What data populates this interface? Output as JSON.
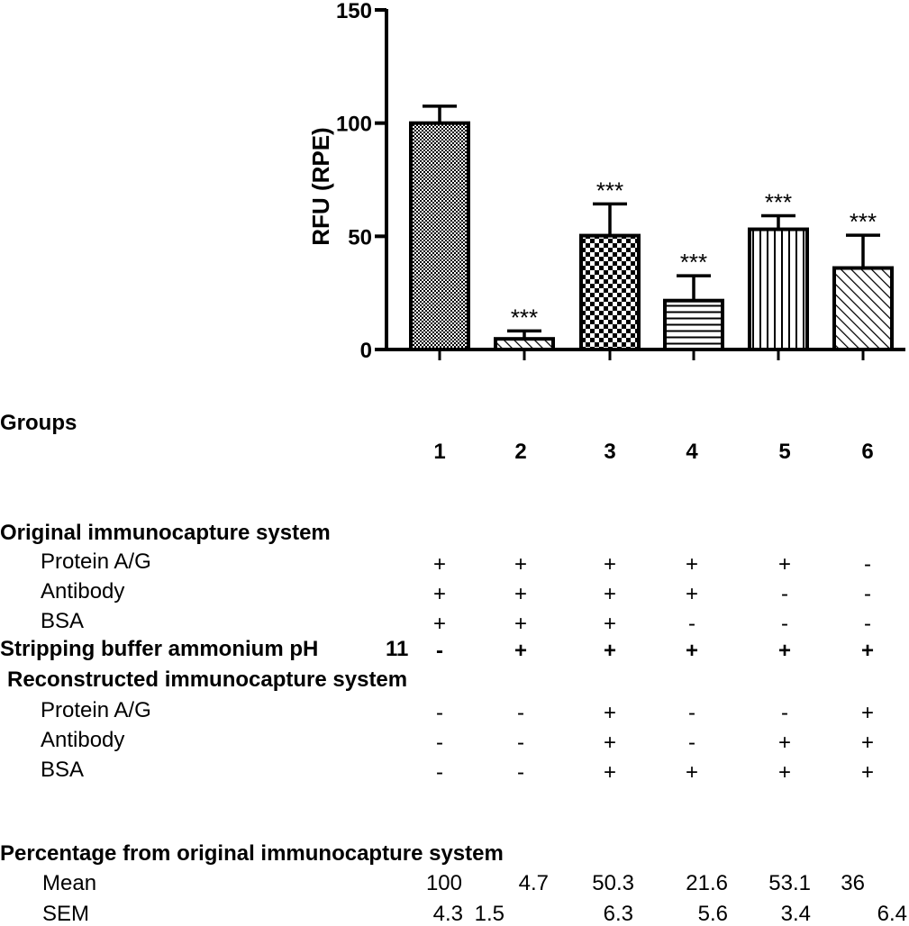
{
  "chart_data": {
    "type": "bar",
    "ylabel": "RFU (RPE)",
    "ylim": [
      0,
      150
    ],
    "yticks": [
      0,
      50,
      100,
      150
    ],
    "categories": [
      "1",
      "2",
      "3",
      "4",
      "5",
      "6"
    ],
    "values": [
      100,
      4.7,
      50.3,
      21.6,
      53.1,
      36
    ],
    "error_plus": [
      7.5,
      3.5,
      14,
      11,
      6,
      14.5
    ],
    "significance": [
      "",
      "***",
      "***",
      "***",
      "***",
      "***"
    ],
    "patterns": [
      "fine-dots",
      "diagonal",
      "checker",
      "horizontal",
      "vertical",
      "diagonal"
    ]
  },
  "table": {
    "groups_label": "Groups",
    "group_numbers": [
      "1",
      "2",
      "3",
      "4",
      "5",
      "6"
    ],
    "original_title": "Original immunocapture system",
    "original_rows": [
      {
        "label": "Protein A/G",
        "values": [
          "+",
          "+",
          "+",
          "+",
          "+",
          "-"
        ]
      },
      {
        "label": "Antibody",
        "values": [
          "+",
          "+",
          "+",
          "+",
          "-",
          "-"
        ]
      },
      {
        "label": "BSA",
        "values": [
          "+",
          "+",
          "+",
          "-",
          "-",
          "-"
        ]
      }
    ],
    "stripping": {
      "label": "Stripping buffer ammonium pH",
      "ph": "11",
      "values": [
        "-",
        "+",
        "+",
        "+",
        "+",
        "+"
      ]
    },
    "reconstructed_title": "Reconstructed immunocapture system",
    "reconstructed_rows": [
      {
        "label": "Protein A/G",
        "values": [
          "-",
          "-",
          "+",
          "-",
          "-",
          "+"
        ]
      },
      {
        "label": "Antibody",
        "values": [
          "-",
          "-",
          "+",
          "-",
          "+",
          "+"
        ]
      },
      {
        "label": "BSA",
        "values": [
          "-",
          "-",
          "+",
          "+",
          "+",
          "+"
        ]
      }
    ],
    "percentage_title": "Percentage from original immunocapture system",
    "mean_label": "Mean",
    "mean_values": [
      "100",
      "4.7",
      "50.3",
      "21.6",
      "53.1",
      "36"
    ],
    "sem_label": "SEM",
    "sem_values": [
      "4.3",
      "1.5",
      "6.3",
      "5.6",
      "3.4",
      "6.4"
    ]
  }
}
